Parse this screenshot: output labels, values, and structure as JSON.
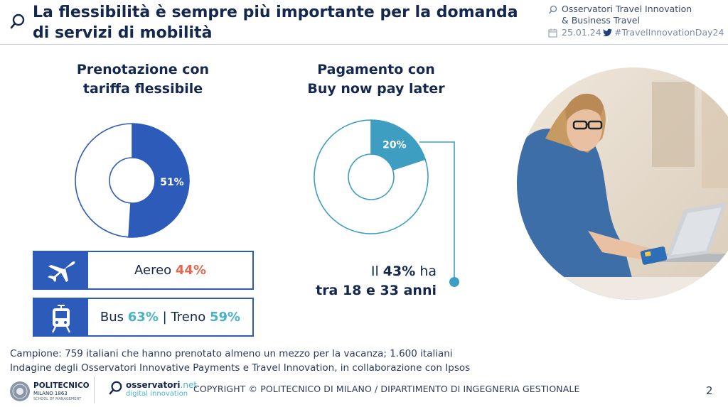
{
  "header": {
    "title_line1": "La flessibilità è sempre più importante per la domanda",
    "title_line2": "di servizi di mobilità",
    "org_line1": "Osservatori Travel Innovation",
    "org_line2": "& Business Travel",
    "date": "25.01.24",
    "hashtag": "#TravelInnovationDay24"
  },
  "chart_data": [
    {
      "type": "pie",
      "title_line1": "Prenotazione con",
      "title_line2": "tariffa flessibile",
      "values": [
        51,
        49
      ],
      "labels": [
        "51%",
        ""
      ],
      "colors": [
        "#2c5bb9",
        "#ffffff"
      ]
    },
    {
      "type": "pie",
      "title_line1": "Pagamento con",
      "title_line2": "Buy now pay later",
      "values": [
        20,
        80
      ],
      "labels": [
        "20%",
        ""
      ],
      "colors": [
        "#3e9ec2",
        "#ffffff"
      ]
    }
  ],
  "modes": {
    "air": {
      "label": "Aereo",
      "value": "44%"
    },
    "bus": {
      "label": "Bus",
      "value": "63%"
    },
    "separator": "|",
    "train": {
      "label": "Treno",
      "value": "59%"
    }
  },
  "stat": {
    "prefix": "Il",
    "value": "43%",
    "suffix": "ha",
    "line2": "tra 18 e 33 anni"
  },
  "notes": {
    "sample": "Campione: 759 italiani che hanno prenotato almeno un mezzo per la vacanza; 1.600 italiani",
    "survey": "Indagine degli Osservatori Innovative Payments e Travel Innovation, in collaborazione con Ipsos"
  },
  "footer": {
    "polimi_name": "POLITECNICO",
    "polimi_sub": "MILANO 1863",
    "polimi_school": "SCHOOL OF MANAGEMENT",
    "osservatori_name": "osservatori",
    "osservatori_tld": ".net",
    "osservatori_sub": "digital innovation",
    "copyright": "COPYRIGHT © POLITECNICO DI MILANO / DIPARTIMENTO DI INGEGNERIA GESTIONALE",
    "page_number": "2"
  },
  "colors": {
    "navy": "#14274e",
    "blue": "#2c5bb9",
    "teal": "#3e9ec2",
    "accent_red": "#e5674f",
    "accent_teal": "#4ab3c9"
  },
  "icons": {
    "title": "magnifier-icon",
    "header_org": "magnifier-icon",
    "date": "calendar-icon",
    "hashtag": "twitter-bird-icon",
    "air": "airplane-icon",
    "bus": "tram-icon"
  }
}
